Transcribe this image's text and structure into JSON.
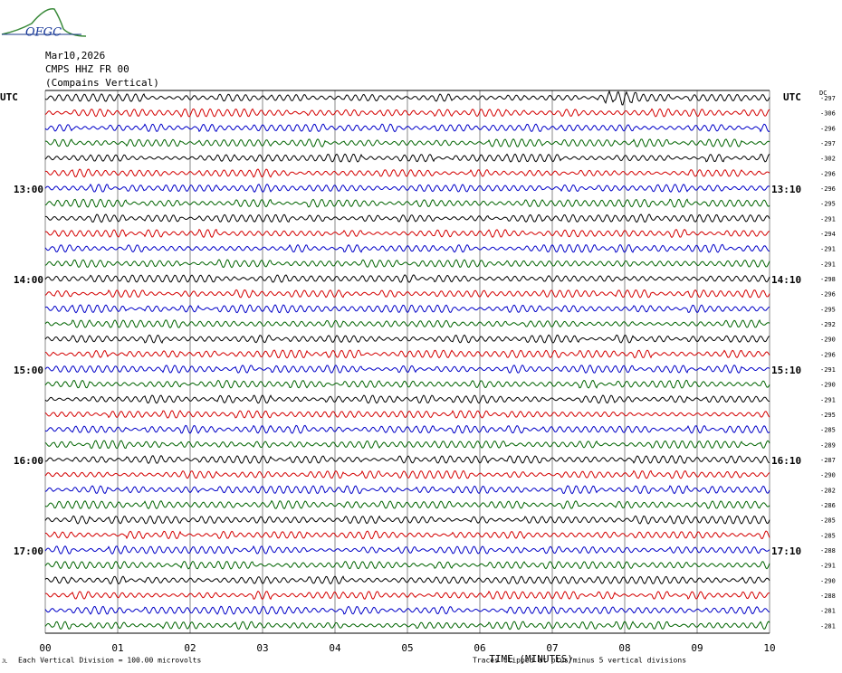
{
  "header": {
    "logo": "OFGC",
    "date": "Mar10,2026",
    "station": "CMPS HHZ FR 00",
    "location": "(Compains Vertical)"
  },
  "left_labels": [
    "UTC",
    "13:00",
    "14:00",
    "15:00",
    "16:00",
    "17:00"
  ],
  "right_labels": [
    "UTC",
    "13:10",
    "14:10",
    "15:10",
    "16:10",
    "17:10"
  ],
  "dc_header": "DC",
  "dc_offsets": [
    "-297",
    "-306",
    "-296",
    "-297",
    "-302",
    "-296",
    "-296",
    "-295",
    "-291",
    "-294",
    "-291",
    "-291",
    "-298",
    "-296",
    "-295",
    "-292",
    "-290",
    "-296",
    "-291",
    "-290",
    "-291",
    "-295",
    "-285",
    "-289",
    "-287",
    "-290",
    "-282",
    "-286",
    "-285",
    "-285",
    "-288",
    "-291",
    "-290",
    "-288",
    "-281",
    "-281"
  ],
  "x_ticks": [
    "00",
    "01",
    "02",
    "03",
    "04",
    "05",
    "06",
    "07",
    "08",
    "09",
    "10"
  ],
  "x_axis_label": "TIME (MINUTES)",
  "footer": {
    "corner": "JL",
    "scale_note": "Each Vertical Division =  100.00 microvolts",
    "clip_note": "Traces clipped at plus/minus 5 vertical divisions"
  }
}
